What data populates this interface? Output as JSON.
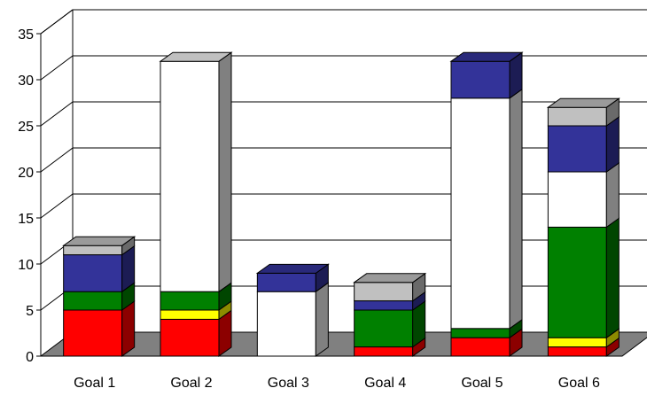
{
  "chart_data": {
    "type": "bar",
    "stacked": true,
    "three_d": true,
    "categories": [
      "Goal 1",
      "Goal 2",
      "Goal 3",
      "Goal 4",
      "Goal 5",
      "Goal 6"
    ],
    "ylim": [
      0,
      35
    ],
    "yticks": [
      0,
      5,
      10,
      15,
      20,
      25,
      30,
      35
    ],
    "grid": true,
    "legend": "none",
    "series": [
      {
        "color": "#ff0000",
        "values": [
          5,
          4,
          0,
          1,
          2,
          1
        ]
      },
      {
        "color": "#ffff00",
        "values": [
          0,
          1,
          0,
          0,
          0,
          1
        ]
      },
      {
        "color": "#008000",
        "values": [
          2,
          2,
          0,
          4,
          1,
          12
        ]
      },
      {
        "color": "#ffffff",
        "values": [
          0,
          25,
          7,
          0,
          25,
          6
        ]
      },
      {
        "color": "#333399",
        "values": [
          4,
          0,
          2,
          1,
          4,
          5
        ]
      },
      {
        "color": "#c0c0c0",
        "values": [
          1,
          0,
          0,
          2,
          0,
          2
        ]
      }
    ]
  }
}
